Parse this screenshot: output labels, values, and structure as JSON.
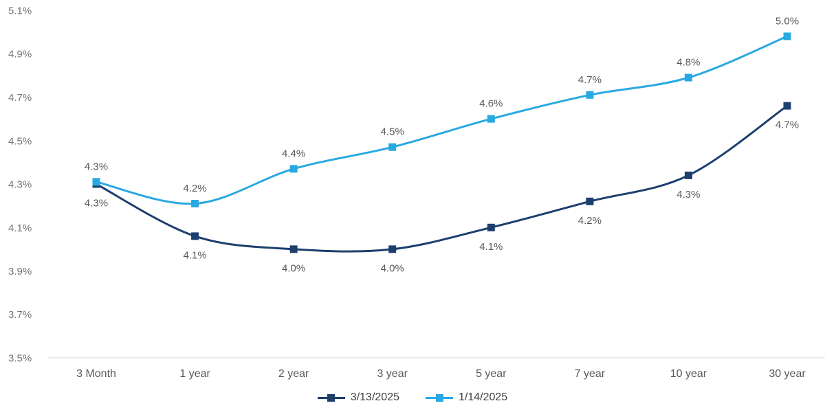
{
  "chart_data": {
    "type": "line",
    "title": "",
    "categories": [
      "3 Month",
      "1 year",
      "2 year",
      "3 year",
      "5 year",
      "7 year",
      "10 year",
      "30 year"
    ],
    "series": [
      {
        "name": "3/13/2025",
        "color": "#1C3F6E",
        "marker": "square",
        "values": [
          4.3,
          4.06,
          4.0,
          4.0,
          4.1,
          4.22,
          4.34,
          4.66
        ],
        "point_labels": [
          "4.3%",
          "4.1%",
          "4.0%",
          "4.0%",
          "4.1%",
          "4.2%",
          "4.3%",
          "4.7%"
        ],
        "label_position": "below"
      },
      {
        "name": "1/14/2025",
        "color": "#29A9E1",
        "marker": "square",
        "values": [
          4.31,
          4.21,
          4.37,
          4.47,
          4.6,
          4.71,
          4.79,
          4.98
        ],
        "point_labels": [
          "4.3%",
          "4.2%",
          "4.4%",
          "4.5%",
          "4.6%",
          "4.7%",
          "4.8%",
          "5.0%"
        ],
        "label_position": "above"
      }
    ],
    "y_axis": {
      "min": 3.5,
      "max": 5.1,
      "step": 0.2,
      "tick_labels": [
        "5.1%",
        "4.9%",
        "4.7%",
        "4.5%",
        "4.3%",
        "4.1%",
        "3.9%",
        "3.7%",
        "3.5%"
      ]
    },
    "x_axis": {
      "tick_labels": [
        "3 Month",
        "1 year",
        "2 year",
        "3 year",
        "5 year",
        "7 year",
        "10 year",
        "30 year"
      ]
    },
    "grid": false,
    "line_style": "smooth",
    "legend_position": "bottom"
  },
  "colors": {
    "background": "#FFFFFF",
    "axis_line": "#D6D6D6",
    "y_tick_label": "#757575",
    "x_tick_label": "#595959",
    "data_label": "#595959",
    "legend_label": "#404040"
  }
}
